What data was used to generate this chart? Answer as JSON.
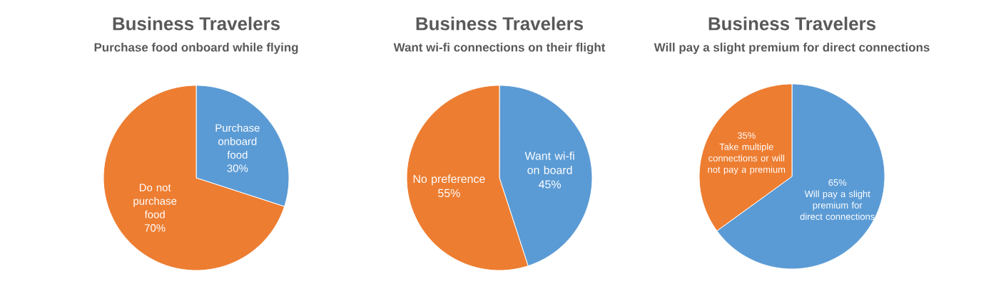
{
  "chart_data": [
    {
      "type": "pie",
      "title": "Business Travelers",
      "subtitle": "Purchase food onboard while flying",
      "categories": [
        "Purchase onboard food",
        "Do not purchase food"
      ],
      "values": [
        30,
        70
      ],
      "colors": [
        "#5b9bd5",
        "#ed7d31"
      ],
      "value_labels": [
        "30%",
        "70%"
      ]
    },
    {
      "type": "pie",
      "title": "Business Travelers",
      "subtitle": "Want wi-fi connections on their flight",
      "categories": [
        "Want wi-fi on board",
        "No preference"
      ],
      "values": [
        45,
        55
      ],
      "colors": [
        "#5b9bd5",
        "#ed7d31"
      ],
      "value_labels": [
        "45%",
        "55%"
      ]
    },
    {
      "type": "pie",
      "title": "Business Travelers",
      "subtitle": "Will pay a slight premium for direct connections",
      "categories": [
        "Will pay a slight premium for direct connections",
        "Take multiple connections or will not pay a premium"
      ],
      "values": [
        65,
        35
      ],
      "colors": [
        "#5b9bd5",
        "#ed7d31"
      ],
      "value_labels": [
        "65%",
        "35%"
      ]
    }
  ]
}
